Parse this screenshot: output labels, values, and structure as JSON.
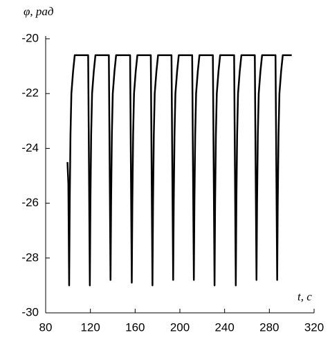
{
  "chart_data": {
    "type": "line",
    "xlabel": "t, с",
    "ylabel": "φ, рад",
    "x": [
      99.5,
      100.3,
      101,
      101.5,
      102.2,
      103,
      104.5,
      106,
      118,
      118.7,
      119.5,
      120,
      120.7,
      121.5,
      123,
      124.5,
      136.5,
      137.2,
      138,
      138.5,
      139.2,
      140,
      141.5,
      143,
      155.5,
      156.2,
      157,
      157.5,
      158.2,
      159,
      160.5,
      162,
      174,
      174.7,
      175.5,
      176,
      176.7,
      177.5,
      179,
      180.5,
      192.5,
      193.2,
      194,
      194.5,
      195.2,
      196,
      197.5,
      199,
      211,
      211.7,
      212.5,
      213,
      213.7,
      214.5,
      216,
      217.5,
      229.5,
      230.2,
      231,
      231.5,
      232.2,
      233,
      234.5,
      236,
      248.5,
      249.2,
      250,
      250.5,
      251.2,
      252,
      253.5,
      255,
      267,
      267.7,
      268.5,
      269,
      269.7,
      270.5,
      272,
      273.5,
      285.5,
      286.2,
      287,
      287.5,
      288.2,
      289,
      290.5,
      292,
      300
    ],
    "values": [
      -24.5,
      -25.3,
      -29,
      -26,
      -23.5,
      -22,
      -21.2,
      -20.6,
      -20.6,
      -24.5,
      -29,
      -26,
      -23.5,
      -22,
      -21.2,
      -20.6,
      -20.6,
      -24.5,
      -28.8,
      -26,
      -23.5,
      -22,
      -21.2,
      -20.6,
      -20.6,
      -24.5,
      -28.9,
      -26,
      -23.5,
      -22,
      -21.2,
      -20.6,
      -20.6,
      -24.5,
      -29,
      -26,
      -23.5,
      -22,
      -21.2,
      -20.6,
      -20.6,
      -24.5,
      -28.8,
      -26,
      -23.5,
      -22,
      -21.2,
      -20.6,
      -20.6,
      -24.5,
      -28.8,
      -26,
      -23.5,
      -22,
      -21.2,
      -20.6,
      -20.6,
      -24.5,
      -29,
      -26,
      -23.5,
      -22,
      -21.2,
      -20.6,
      -20.6,
      -24.5,
      -29,
      -26,
      -23.5,
      -22,
      -21.2,
      -20.6,
      -20.6,
      -24.5,
      -28.8,
      -26,
      -23.5,
      -22,
      -21.2,
      -20.6,
      -20.6,
      -24.5,
      -28.8,
      -26,
      -23.5,
      -22,
      -21.2,
      -20.6,
      -20.6
    ],
    "color": "#000000",
    "xlim": [
      80,
      320
    ],
    "xticks": [
      80,
      120,
      160,
      200,
      240,
      280,
      320
    ],
    "ylim": [
      -30,
      -20
    ],
    "yticks": [
      -20,
      -22,
      -24,
      -26,
      -28,
      -30
    ]
  }
}
